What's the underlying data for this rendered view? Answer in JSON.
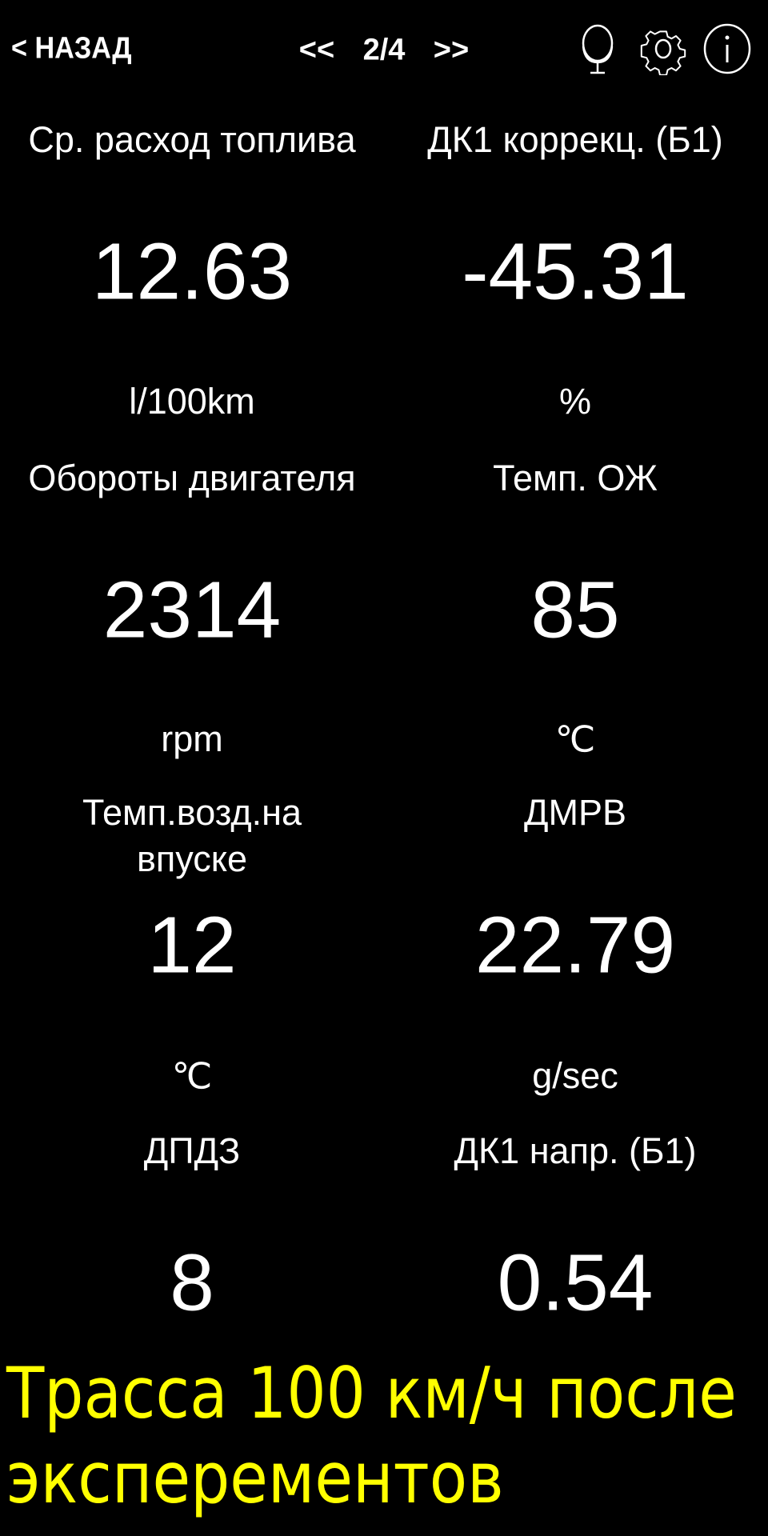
{
  "header": {
    "back_label": "< НАЗАД",
    "prev_label": "<<",
    "page_indicator": "2/4",
    "next_label": ">>",
    "icons": [
      "mirror-icon",
      "gear-icon",
      "info-icon"
    ]
  },
  "gauges": [
    {
      "label": "Ср. расход топлива",
      "value": "12.63",
      "unit": "l/100km"
    },
    {
      "label": "ДК1 коррекц. (Б1)",
      "value": "-45.31",
      "unit": "%"
    },
    {
      "label": "Обороты двигателя",
      "value": "2314",
      "unit": "rpm"
    },
    {
      "label": "Темп. ОЖ",
      "value": "85",
      "unit": "℃"
    },
    {
      "label": "Темп.возд.на впуске",
      "value": "12",
      "unit": "℃"
    },
    {
      "label": "ДМРВ",
      "value": "22.79",
      "unit": "g/sec"
    },
    {
      "label": "ДПДЗ",
      "value": "8",
      "unit": ""
    },
    {
      "label": "ДК1 напр. (Б1)",
      "value": "0.54",
      "unit": ""
    }
  ],
  "overlay_note": {
    "line1": "Трасса 100 км/ч после",
    "line2": "эксперементов",
    "color": "#ffff00"
  }
}
